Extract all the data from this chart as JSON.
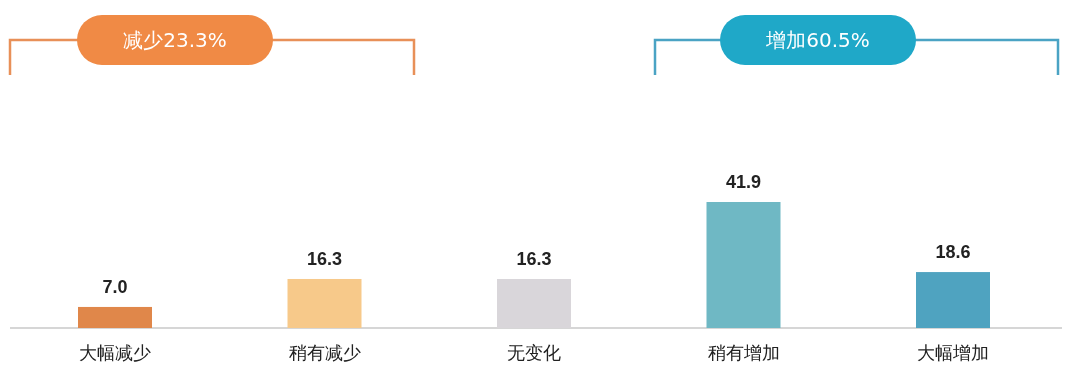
{
  "chart_data": {
    "type": "bar",
    "categories": [
      "大幅减少",
      "稍有减少",
      "无变化",
      "稍有增加",
      "大幅增加"
    ],
    "values": [
      7.0,
      16.3,
      16.3,
      41.9,
      18.6
    ],
    "value_labels": [
      "7.0",
      "16.3",
      "16.3",
      "41.9",
      "18.6"
    ],
    "colors": [
      "#e0874a",
      "#f7c98a",
      "#d9d6da",
      "#6fb8c4",
      "#4fa3c0"
    ],
    "annotations": [
      "减少23.3%",
      "增加60.5%"
    ]
  }
}
